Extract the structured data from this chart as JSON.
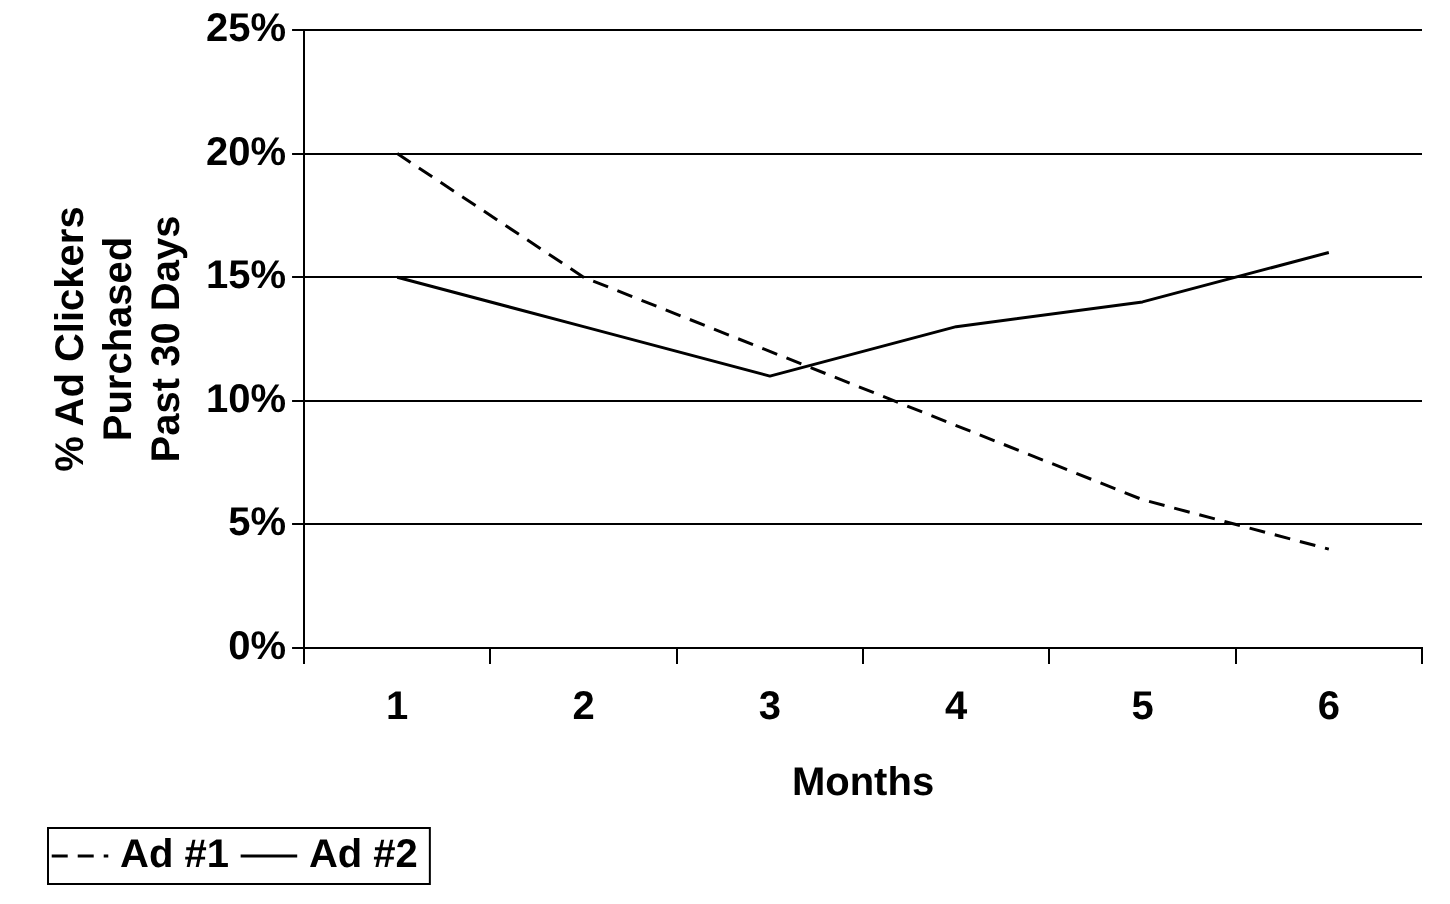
{
  "chart_data": {
    "type": "line",
    "xlabel": "Months",
    "ylabel": "% Ad Clickers\nPurchased\nPast 30 Days",
    "categories": [
      "1",
      "2",
      "3",
      "4",
      "5",
      "6"
    ],
    "series": [
      {
        "name": "Ad #1",
        "color": "#000000",
        "line_style": "dashed",
        "values": [
          20,
          15,
          12,
          9,
          6,
          4
        ]
      },
      {
        "name": "Ad #2",
        "color": "#000000",
        "line_style": "solid",
        "values": [
          15,
          13,
          11,
          13,
          14,
          16
        ]
      }
    ],
    "ylim": [
      0,
      25
    ],
    "yticks": [
      {
        "value": 0,
        "label": "0%"
      },
      {
        "value": 5,
        "label": "5%"
      },
      {
        "value": 10,
        "label": "10%"
      },
      {
        "value": 15,
        "label": "15%"
      },
      {
        "value": 20,
        "label": "20%"
      },
      {
        "value": 25,
        "label": "25%"
      }
    ],
    "grid": "y",
    "legend": "bottom left",
    "marker": "none"
  }
}
